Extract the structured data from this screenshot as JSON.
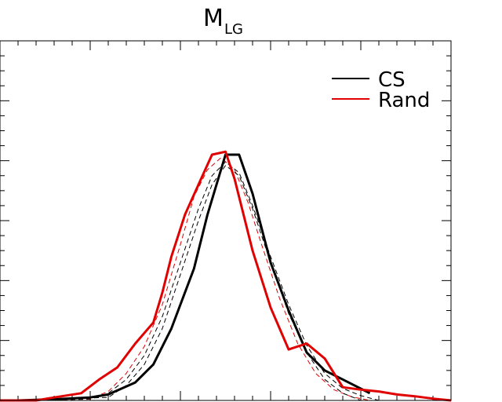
{
  "chart_data": {
    "type": "line",
    "title": {
      "main": "M",
      "subscript": "LG"
    },
    "xlabel": "",
    "ylabel": "",
    "xlim": [
      0,
      100
    ],
    "ylim": [
      0,
      6
    ],
    "grid": false,
    "legend": {
      "placement": "top-right"
    },
    "series": [
      {
        "name": "CS",
        "color": "#000000",
        "style": "solid-thick",
        "x": [
          0,
          4,
          12,
          20,
          24,
          30,
          34,
          38,
          40,
          43,
          46,
          50,
          53,
          56,
          60,
          64,
          68,
          72,
          76,
          82
        ],
        "y": [
          0.0,
          0.0,
          0.02,
          0.05,
          0.1,
          0.3,
          0.6,
          1.2,
          1.6,
          2.2,
          3.1,
          4.1,
          4.1,
          3.45,
          2.3,
          1.5,
          0.8,
          0.5,
          0.35,
          0.12
        ]
      },
      {
        "name": "Rand",
        "color": "#e00000",
        "style": "solid-thick",
        "x": [
          0,
          8,
          12,
          18,
          22,
          26,
          30,
          34,
          36,
          38,
          41,
          44,
          47,
          50,
          52,
          56,
          60,
          64,
          68,
          72,
          76,
          80,
          84,
          88,
          92,
          96,
          100
        ],
        "y": [
          0.0,
          0.0,
          0.05,
          0.12,
          0.35,
          0.55,
          0.95,
          1.3,
          1.8,
          2.4,
          3.1,
          3.6,
          4.1,
          4.15,
          3.7,
          2.5,
          1.55,
          0.85,
          0.95,
          0.7,
          0.22,
          0.18,
          0.15,
          0.1,
          0.07,
          0.03,
          0.0
        ]
      },
      {
        "name": "",
        "color": "#000000",
        "style": "dashed",
        "x": [
          0,
          20,
          24,
          28,
          32,
          36,
          40,
          44,
          47,
          50,
          53,
          56,
          60,
          64,
          68,
          72,
          76,
          80,
          84
        ],
        "y": [
          0.0,
          0.02,
          0.12,
          0.35,
          0.75,
          1.4,
          2.3,
          3.2,
          3.75,
          3.98,
          3.8,
          3.25,
          2.4,
          1.6,
          0.92,
          0.45,
          0.2,
          0.08,
          0.0
        ]
      },
      {
        "name": "",
        "color": "#e00000",
        "style": "dashed",
        "x": [
          0,
          20,
          24,
          28,
          32,
          36,
          40,
          43,
          46,
          49,
          52,
          55,
          58,
          62,
          66,
          70,
          74,
          78,
          82
        ],
        "y": [
          0.0,
          0.03,
          0.15,
          0.45,
          0.9,
          1.6,
          2.6,
          3.4,
          3.85,
          4.05,
          3.85,
          3.3,
          2.6,
          1.7,
          0.95,
          0.45,
          0.18,
          0.06,
          0.0
        ]
      },
      {
        "name": "",
        "color": "#000000",
        "style": "dashed",
        "x": [
          0,
          24,
          28,
          32,
          36,
          40,
          44,
          47,
          50,
          53,
          56,
          60,
          64,
          68,
          72,
          76,
          80
        ],
        "y": [
          0.0,
          0.05,
          0.25,
          0.6,
          1.2,
          2.1,
          3.0,
          3.6,
          3.92,
          3.75,
          3.2,
          2.3,
          1.45,
          0.8,
          0.35,
          0.12,
          0.0
        ]
      }
    ]
  }
}
